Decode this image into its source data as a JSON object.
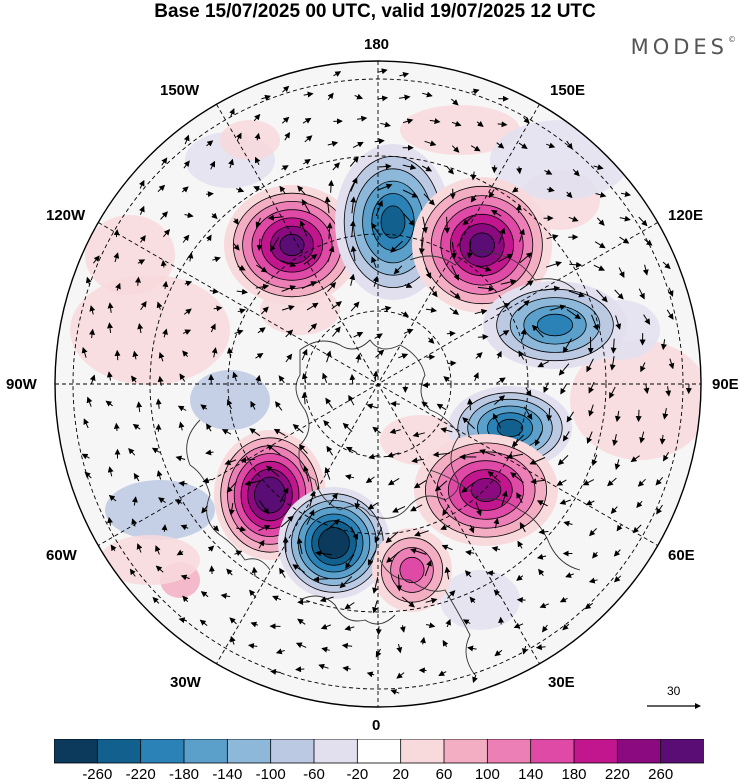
{
  "title": "Base 15/07/2025 00 UTC, valid 19/07/2025 12 UTC",
  "brand": "MODES",
  "brand_mark": "©",
  "longitude_labels": {
    "top": "180",
    "bottom": "0",
    "left": "90W",
    "right": "90E",
    "upper_left_1": "150W",
    "upper_left_2": "120W",
    "upper_right_1": "150E",
    "upper_right_2": "120E",
    "lower_left_1": "60W",
    "lower_left_2": "30W",
    "lower_right_1": "60E",
    "lower_right_2": "30E"
  },
  "reference_arrow": {
    "value": "30"
  },
  "colorbar": {
    "ticks": [
      "-260",
      "-220",
      "-180",
      "-140",
      "-100",
      "-60",
      "-20",
      "20",
      "60",
      "100",
      "140",
      "180",
      "220",
      "260"
    ],
    "colors": [
      "#0b3a5c",
      "#12608e",
      "#2a82b6",
      "#5aa0cb",
      "#8db8d9",
      "#bcc9e3",
      "#e2e0ee",
      "#ffffff",
      "#f8d9dc",
      "#f3aec3",
      "#ec80b6",
      "#df4aa6",
      "#c2168f",
      "#8c0a80",
      "#5a0d74"
    ]
  },
  "anomaly_centers": [
    {
      "name": "positive-anomaly-120w",
      "sign": "positive",
      "strength": 220
    },
    {
      "name": "negative-anomaly-near-180",
      "sign": "negative",
      "strength": 200
    },
    {
      "name": "positive-anomaly-135e",
      "sign": "positive",
      "strength": 220
    },
    {
      "name": "negative-anomaly-105e",
      "sign": "negative",
      "strength": 140
    },
    {
      "name": "negative-anomaly-75e",
      "sign": "negative",
      "strength": 180
    },
    {
      "name": "positive-anomaly-45e",
      "sign": "positive",
      "strength": 180
    },
    {
      "name": "positive-anomaly-60w",
      "sign": "positive",
      "strength": 260
    },
    {
      "name": "negative-anomaly-30w",
      "sign": "negative",
      "strength": 260
    },
    {
      "name": "positive-anomaly-10e",
      "sign": "positive",
      "strength": 100
    }
  ]
}
